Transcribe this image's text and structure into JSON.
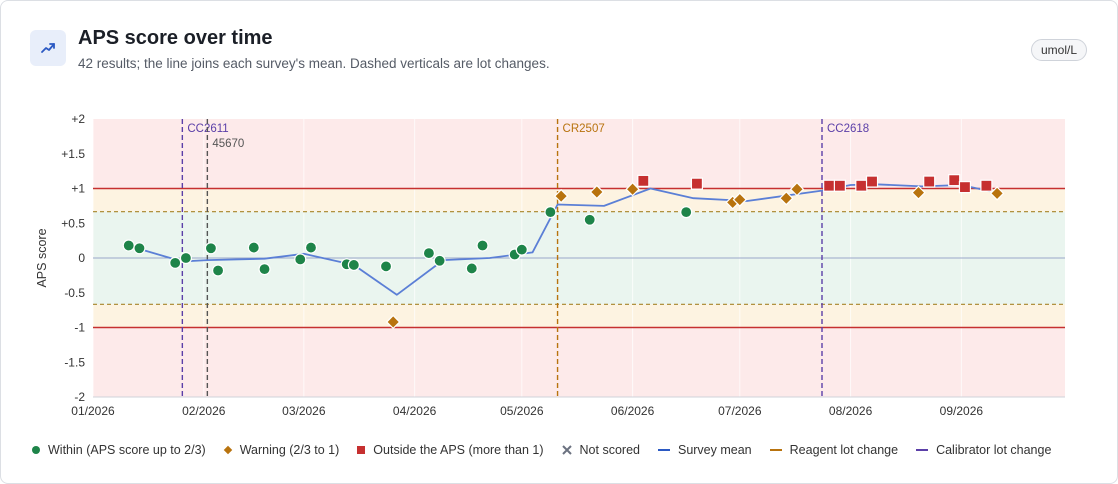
{
  "header": {
    "title": "APS score over time",
    "subtitle": "42 results; the line joins each survey's mean. Dashed verticals are lot changes.",
    "unit": "umol/L",
    "icon": "trending-up-icon"
  },
  "legend": [
    {
      "key": "within",
      "label": "Within (APS score up to 2/3)",
      "color": "#1e8449"
    },
    {
      "key": "warning",
      "label": "Warning (2/3 to 1)",
      "color": "#b8730e"
    },
    {
      "key": "outside",
      "label": "Outside the APS (more than 1)",
      "color": "#c63030"
    },
    {
      "key": "not_scored",
      "label": "Not scored",
      "color": "#6b7280"
    },
    {
      "key": "mean",
      "label": "Survey mean",
      "color": "#2b59c3"
    },
    {
      "key": "reagent",
      "label": "Reagent lot change",
      "color": "#b8730e"
    },
    {
      "key": "calibrator",
      "label": "Calibrator lot change",
      "color": "#5b3fa8"
    }
  ],
  "chart_data": {
    "type": "scatter",
    "ylabel": "APS score",
    "ylim": [
      -2,
      2
    ],
    "yticks": [
      {
        "v": 2,
        "label": "+2"
      },
      {
        "v": 1.5,
        "label": "+1.5"
      },
      {
        "v": 1,
        "label": "+1"
      },
      {
        "v": 0.5,
        "label": "+0.5"
      },
      {
        "v": 0,
        "label": "0"
      },
      {
        "v": -0.5,
        "label": "-0.5"
      },
      {
        "v": -1,
        "label": "-1"
      },
      {
        "v": -1.5,
        "label": "-1.5"
      },
      {
        "v": -2,
        "label": "-2"
      }
    ],
    "xlim": [
      "2026-01-01",
      "2026-09-30"
    ],
    "xticks": [
      {
        "date": "2026-01-01",
        "label": "01/2026"
      },
      {
        "date": "2026-02-01",
        "label": "02/2026"
      },
      {
        "date": "2026-03-01",
        "label": "03/2026"
      },
      {
        "date": "2026-04-01",
        "label": "04/2026"
      },
      {
        "date": "2026-05-01",
        "label": "05/2026"
      },
      {
        "date": "2026-06-01",
        "label": "06/2026"
      },
      {
        "date": "2026-07-01",
        "label": "07/2026"
      },
      {
        "date": "2026-08-01",
        "label": "08/2026"
      },
      {
        "date": "2026-09-01",
        "label": "09/2026"
      }
    ],
    "bands": {
      "warning": 0.6667,
      "outside": 1
    },
    "lot_changes": [
      {
        "date": "2026-01-26",
        "label": "CC2611",
        "kind": "calibrator"
      },
      {
        "date": "2026-02-02",
        "label": "45670",
        "kind": "other"
      },
      {
        "date": "2026-05-11",
        "label": "CR2507",
        "kind": "reagent"
      },
      {
        "date": "2026-07-24",
        "label": "CC2618",
        "kind": "calibrator"
      }
    ],
    "survey_mean": [
      {
        "x": "2026-01-12",
        "y": 0.16
      },
      {
        "x": "2026-01-26",
        "y": -0.05
      },
      {
        "x": "2026-02-02",
        "y": -0.03
      },
      {
        "x": "2026-02-18",
        "y": -0.01
      },
      {
        "x": "2026-03-01",
        "y": 0.06
      },
      {
        "x": "2026-03-15",
        "y": -0.1
      },
      {
        "x": "2026-03-27",
        "y": -0.53
      },
      {
        "x": "2026-04-09",
        "y": -0.03
      },
      {
        "x": "2026-04-22",
        "y": 0
      },
      {
        "x": "2026-05-04",
        "y": 0.08
      },
      {
        "x": "2026-05-11",
        "y": 0.77
      },
      {
        "x": "2026-05-24",
        "y": 0.75
      },
      {
        "x": "2026-06-06",
        "y": 1
      },
      {
        "x": "2026-06-18",
        "y": 0.86
      },
      {
        "x": "2026-07-03",
        "y": 0.82
      },
      {
        "x": "2026-07-24",
        "y": 0.97
      },
      {
        "x": "2026-08-01",
        "y": 1.05
      },
      {
        "x": "2026-08-08",
        "y": 1.06
      },
      {
        "x": "2026-08-21",
        "y": 1.03
      },
      {
        "x": "2026-09-01",
        "y": 1.05
      },
      {
        "x": "2026-09-09",
        "y": 0.96
      }
    ],
    "points": [
      {
        "x": "2026-01-11",
        "y": 0.18,
        "status": "within"
      },
      {
        "x": "2026-01-14",
        "y": 0.14,
        "status": "within"
      },
      {
        "x": "2026-01-24",
        "y": -0.07,
        "status": "within"
      },
      {
        "x": "2026-01-27",
        "y": 0,
        "status": "within"
      },
      {
        "x": "2026-02-03",
        "y": 0.14,
        "status": "within"
      },
      {
        "x": "2026-02-05",
        "y": -0.18,
        "status": "within"
      },
      {
        "x": "2026-02-15",
        "y": 0.15,
        "status": "within"
      },
      {
        "x": "2026-02-18",
        "y": -0.16,
        "status": "within"
      },
      {
        "x": "2026-02-28",
        "y": -0.02,
        "status": "within"
      },
      {
        "x": "2026-03-03",
        "y": 0.15,
        "status": "within"
      },
      {
        "x": "2026-03-13",
        "y": -0.09,
        "status": "within"
      },
      {
        "x": "2026-03-15",
        "y": -0.1,
        "status": "within"
      },
      {
        "x": "2026-03-24",
        "y": -0.12,
        "status": "within"
      },
      {
        "x": "2026-03-26",
        "y": -0.92,
        "status": "warning"
      },
      {
        "x": "2026-04-05",
        "y": 0.07,
        "status": "within"
      },
      {
        "x": "2026-04-08",
        "y": -0.04,
        "status": "within"
      },
      {
        "x": "2026-04-17",
        "y": -0.15,
        "status": "within"
      },
      {
        "x": "2026-04-20",
        "y": 0.18,
        "status": "within"
      },
      {
        "x": "2026-04-29",
        "y": 0.05,
        "status": "within"
      },
      {
        "x": "2026-05-01",
        "y": 0.12,
        "status": "within"
      },
      {
        "x": "2026-05-09",
        "y": 0.66,
        "status": "within"
      },
      {
        "x": "2026-05-12",
        "y": 0.89,
        "status": "warning"
      },
      {
        "x": "2026-05-20",
        "y": 0.55,
        "status": "within"
      },
      {
        "x": "2026-05-22",
        "y": 0.95,
        "status": "warning"
      },
      {
        "x": "2026-06-01",
        "y": 0.99,
        "status": "warning"
      },
      {
        "x": "2026-06-04",
        "y": 1.11,
        "status": "outside"
      },
      {
        "x": "2026-06-16",
        "y": 0.66,
        "status": "within"
      },
      {
        "x": "2026-06-19",
        "y": 1.07,
        "status": "outside"
      },
      {
        "x": "2026-06-29",
        "y": 0.8,
        "status": "warning"
      },
      {
        "x": "2026-07-01",
        "y": 0.84,
        "status": "warning"
      },
      {
        "x": "2026-07-14",
        "y": 0.86,
        "status": "warning"
      },
      {
        "x": "2026-07-17",
        "y": 0.99,
        "status": "warning"
      },
      {
        "x": "2026-07-26",
        "y": 1.04,
        "status": "outside"
      },
      {
        "x": "2026-07-29",
        "y": 1.04,
        "status": "outside"
      },
      {
        "x": "2026-08-04",
        "y": 1.04,
        "status": "outside"
      },
      {
        "x": "2026-08-07",
        "y": 1.1,
        "status": "outside"
      },
      {
        "x": "2026-08-20",
        "y": 0.94,
        "status": "warning"
      },
      {
        "x": "2026-08-23",
        "y": 1.1,
        "status": "outside"
      },
      {
        "x": "2026-08-30",
        "y": 1.12,
        "status": "outside"
      },
      {
        "x": "2026-09-02",
        "y": 1.02,
        "status": "outside"
      },
      {
        "x": "2026-09-08",
        "y": 1.04,
        "status": "outside"
      },
      {
        "x": "2026-09-11",
        "y": 0.93,
        "status": "warning"
      }
    ]
  }
}
